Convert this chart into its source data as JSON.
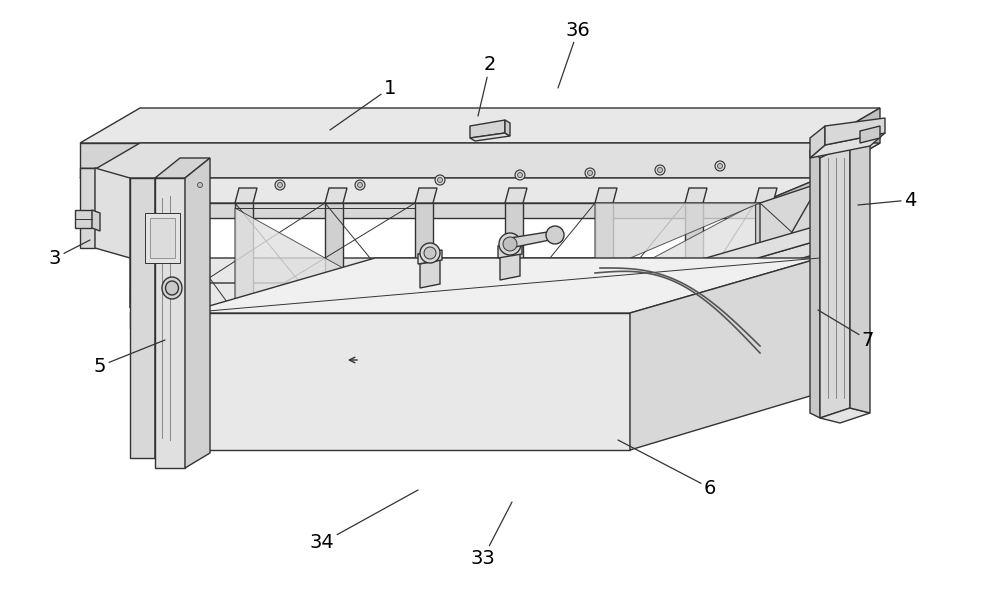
{
  "background_color": "#ffffff",
  "line_color": "#333333",
  "line_color_light": "#888888",
  "fill_light": "#e8e8e8",
  "fill_medium": "#d0d0d0",
  "fill_dark": "#b8b8b8",
  "fill_top": "#f0f0f0",
  "annotations": [
    [
      "1",
      390,
      510,
      330,
      468
    ],
    [
      "2",
      490,
      533,
      478,
      482
    ],
    [
      "3",
      55,
      340,
      90,
      358
    ],
    [
      "4",
      910,
      398,
      858,
      393
    ],
    [
      "5",
      100,
      232,
      165,
      258
    ],
    [
      "6",
      710,
      110,
      618,
      158
    ],
    [
      "7",
      868,
      258,
      818,
      288
    ],
    [
      "33",
      483,
      40,
      512,
      96
    ],
    [
      "34",
      322,
      55,
      418,
      108
    ],
    [
      "36",
      578,
      568,
      558,
      510
    ]
  ]
}
